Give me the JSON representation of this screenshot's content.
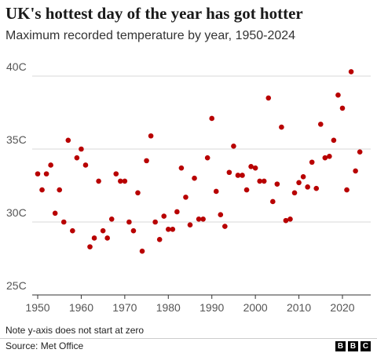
{
  "header": {
    "title": "UK's hottest day of the year has got hotter",
    "subtitle": "Maximum recorded temperature by year, 1950-2024"
  },
  "footer": {
    "note": "Note y-axis does not start at zero",
    "source": "Source: Met Office",
    "logo_letters": [
      "B",
      "B",
      "C"
    ]
  },
  "chart_data": {
    "type": "scatter",
    "title": "UK's hottest day of the year has got hotter",
    "subtitle": "Maximum recorded temperature by year, 1950-2024",
    "xlabel": "",
    "ylabel": "",
    "xlim": [
      1949,
      2025
    ],
    "ylim": [
      25,
      42
    ],
    "grid": true,
    "point_color": "#b80000",
    "x_ticks": [
      {
        "value": 1950,
        "label": "1950"
      },
      {
        "value": 1960,
        "label": "1960"
      },
      {
        "value": 1970,
        "label": "1970"
      },
      {
        "value": 1980,
        "label": "1980"
      },
      {
        "value": 1990,
        "label": "1990"
      },
      {
        "value": 2000,
        "label": "2000"
      },
      {
        "value": 2010,
        "label": "2010"
      },
      {
        "value": 2020,
        "label": "2020"
      }
    ],
    "y_ticks": [
      {
        "value": 25,
        "label": "25C"
      },
      {
        "value": 30,
        "label": "30C"
      },
      {
        "value": 35,
        "label": "35C"
      },
      {
        "value": 40,
        "label": "40C"
      }
    ],
    "x": [
      1950,
      1951,
      1952,
      1953,
      1954,
      1955,
      1956,
      1957,
      1958,
      1959,
      1960,
      1961,
      1962,
      1963,
      1964,
      1965,
      1966,
      1967,
      1968,
      1969,
      1970,
      1971,
      1972,
      1973,
      1974,
      1975,
      1976,
      1977,
      1978,
      1979,
      1980,
      1981,
      1982,
      1983,
      1984,
      1985,
      1986,
      1987,
      1988,
      1989,
      1990,
      1991,
      1992,
      1993,
      1994,
      1995,
      1996,
      1997,
      1998,
      1999,
      2000,
      2001,
      2002,
      2003,
      2004,
      2005,
      2006,
      2007,
      2008,
      2009,
      2010,
      2011,
      2012,
      2013,
      2014,
      2015,
      2016,
      2017,
      2018,
      2019,
      2020,
      2021,
      2022,
      2023,
      2024
    ],
    "y": [
      33.3,
      32.2,
      33.3,
      33.9,
      30.6,
      32.2,
      30.0,
      35.6,
      29.4,
      34.4,
      35.0,
      33.9,
      28.3,
      28.9,
      32.8,
      29.4,
      28.9,
      30.2,
      33.3,
      32.8,
      32.8,
      30.0,
      29.4,
      32.0,
      28.0,
      34.2,
      35.9,
      30.0,
      28.8,
      30.4,
      29.5,
      29.5,
      30.7,
      33.7,
      31.7,
      29.8,
      33.0,
      30.2,
      30.2,
      34.4,
      37.1,
      32.1,
      30.5,
      29.7,
      33.4,
      35.2,
      33.2,
      33.2,
      32.2,
      33.8,
      33.7,
      32.8,
      32.8,
      38.5,
      31.4,
      32.6,
      36.5,
      30.1,
      30.2,
      32.0,
      32.7,
      33.1,
      32.4,
      34.1,
      32.3,
      36.7,
      34.4,
      34.5,
      35.6,
      38.7,
      37.8,
      32.2,
      40.3,
      33.5,
      34.8
    ]
  }
}
